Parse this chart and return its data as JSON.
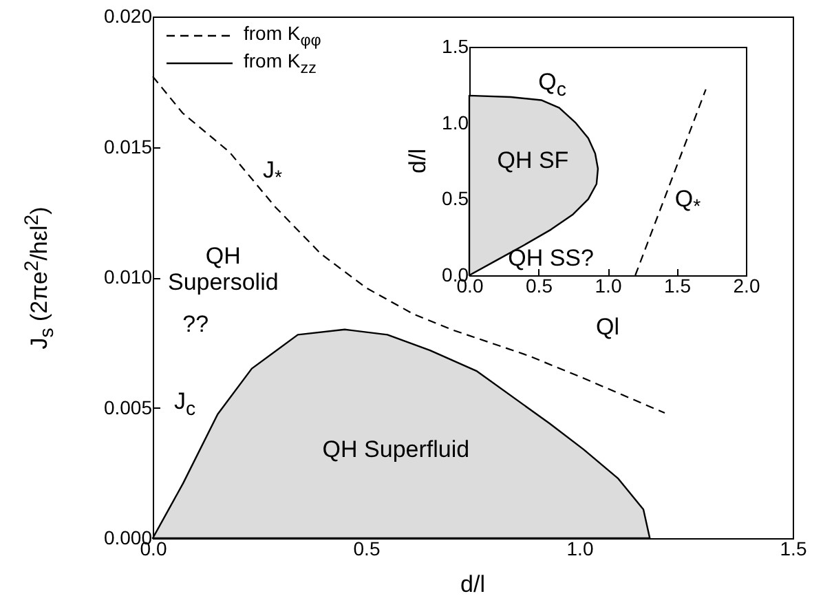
{
  "chart_data": [
    {
      "type": "area",
      "xlabel": "d/l",
      "ylabel": "J$_{s}$ (2πe$^{2}$/hεl$^{2}$)",
      "xlim": [
        0,
        1.5
      ],
      "ylim": [
        0,
        0.02
      ],
      "xticks": [
        {
          "value": 0,
          "label": "0.0"
        },
        {
          "value": 0.5,
          "label": "0.5"
        },
        {
          "value": 1,
          "label": "1.0"
        },
        {
          "value": 1.5,
          "label": "1.5"
        }
      ],
      "yticks": [
        {
          "value": 0,
          "label": "0.000"
        },
        {
          "value": 0.005,
          "label": "0.005"
        },
        {
          "value": 0.01,
          "label": "0.010"
        },
        {
          "value": 0.015,
          "label": "0.015"
        },
        {
          "value": 0.02,
          "label": "0.020"
        }
      ],
      "legend": "top left",
      "series": [
        {
          "name": "from K$_{φφ}$",
          "type": "line",
          "line_style": "dashed",
          "color": "#000000",
          "x": [
            0,
            0.07,
            0.18,
            0.287,
            0.394,
            0.5,
            0.61,
            0.7,
            0.88,
            1.0,
            1.1,
            1.2
          ],
          "values": [
            0.0177,
            0.0163,
            0.0148,
            0.0127,
            0.0109,
            0.0096,
            0.0086,
            0.008,
            0.007,
            0.0062,
            0.0055,
            0.0048
          ]
        },
        {
          "name": "from K$_{zz}$",
          "line_style": "solid",
          "color": "#dcdcdc",
          "x": [
            0,
            0.071,
            0.152,
            0.232,
            0.34,
            0.45,
            0.55,
            0.65,
            0.76,
            0.93,
            1.01,
            1.09,
            1.15,
            1.165
          ],
          "values": [
            0,
            0.0021,
            0.00475,
            0.0065,
            0.0078,
            0.008,
            0.0078,
            0.0072,
            0.0064,
            0.0044,
            0.0034,
            0.0023,
            0.0011,
            0
          ]
        }
      ],
      "annotations": [
        "J$_{*}$",
        "J$_{c}$",
        "QH\nSupersolid",
        "??",
        "QH Superfluid"
      ]
    },
    {
      "type": "area",
      "orientation": "horizontal",
      "xlabel": "Ql",
      "ylabel": "d/l",
      "xlim": [
        0,
        2
      ],
      "ylim": [
        0,
        1.5
      ],
      "xticks": [
        {
          "value": 0,
          "label": "0.0"
        },
        {
          "value": 0.5,
          "label": "0.5"
        },
        {
          "value": 1,
          "label": "1.0"
        },
        {
          "value": 1.5,
          "label": "1.5"
        },
        {
          "value": 2,
          "label": "2.0"
        }
      ],
      "yticks": [
        {
          "value": 0,
          "label": "0.0"
        },
        {
          "value": 0.5,
          "label": "0.5"
        },
        {
          "value": 1,
          "label": "1.0"
        },
        {
          "value": 1.5,
          "label": "1.5"
        }
      ],
      "series": [
        {
          "line_style": "solid",
          "color": "#dcdcdc",
          "x": [
            0,
            0.1,
            0.2,
            0.3,
            0.4,
            0.5,
            0.6,
            0.7,
            0.8,
            0.9,
            1.0,
            1.1,
            1.15,
            1.17,
            1.18
          ],
          "values": [
            0,
            0.2,
            0.4,
            0.59,
            0.75,
            0.86,
            0.92,
            0.93,
            0.91,
            0.86,
            0.77,
            0.65,
            0.52,
            0.3,
            0
          ]
        },
        {
          "type": "line",
          "line_style": "dashed",
          "color": "#000000",
          "x": [
            0,
            1.22
          ],
          "values": [
            1.2,
            1.71
          ]
        }
      ],
      "annotations": [
        "Q$_{c}$",
        "QH SF",
        "QH SS?",
        "Q$_{*}$"
      ]
    }
  ]
}
